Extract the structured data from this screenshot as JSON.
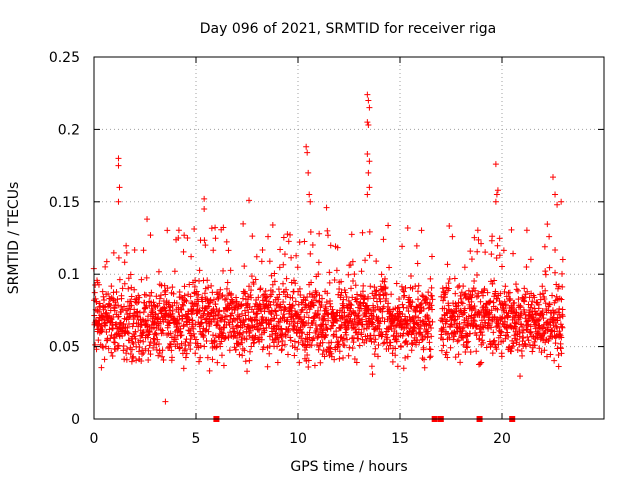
{
  "chart_data": {
    "type": "scatter",
    "title": "Day 096 of 2021, SRMTID for receiver riga",
    "xlabel": "GPS time / hours",
    "ylabel": "SRMTID / TECUs",
    "xlim": [
      0,
      25
    ],
    "ylim": [
      0,
      0.25
    ],
    "x_ticks": [
      0,
      5,
      10,
      15,
      20
    ],
    "x_tick_labels": [
      "0",
      "5",
      "10",
      "15",
      "20"
    ],
    "y_ticks": [
      0,
      0.05,
      0.1,
      0.15,
      0.2,
      0.25
    ],
    "y_tick_labels": [
      "0",
      "0.05",
      "0.1",
      "0.15",
      "0.2",
      "0.25"
    ],
    "grid": true,
    "marker": "plus",
    "color": "#ff0000",
    "series": [
      {
        "name": "SRMTID",
        "density_profile": {
          "description": "dense band of plus markers, mostly between 0.03 and 0.10 TECU, across 0–23 h; data gap ~16.6–17.0 h",
          "x_range": [
            0,
            23
          ],
          "typical_range": [
            0.02,
            0.12
          ],
          "gaps": [
            [
              16.6,
              17.0
            ]
          ]
        },
        "notable_points": [
          {
            "x": 1.2,
            "y": 0.18
          },
          {
            "x": 1.2,
            "y": 0.175
          },
          {
            "x": 1.25,
            "y": 0.16
          },
          {
            "x": 1.2,
            "y": 0.15
          },
          {
            "x": 2.6,
            "y": 0.138
          },
          {
            "x": 5.4,
            "y": 0.152
          },
          {
            "x": 5.4,
            "y": 0.145
          },
          {
            "x": 7.6,
            "y": 0.151
          },
          {
            "x": 10.4,
            "y": 0.188
          },
          {
            "x": 10.45,
            "y": 0.184
          },
          {
            "x": 10.5,
            "y": 0.17
          },
          {
            "x": 10.55,
            "y": 0.155
          },
          {
            "x": 10.6,
            "y": 0.15
          },
          {
            "x": 11.4,
            "y": 0.146
          },
          {
            "x": 13.4,
            "y": 0.224
          },
          {
            "x": 13.45,
            "y": 0.22
          },
          {
            "x": 13.5,
            "y": 0.215
          },
          {
            "x": 13.4,
            "y": 0.205
          },
          {
            "x": 13.45,
            "y": 0.203
          },
          {
            "x": 13.4,
            "y": 0.183
          },
          {
            "x": 13.5,
            "y": 0.178
          },
          {
            "x": 13.45,
            "y": 0.17
          },
          {
            "x": 13.5,
            "y": 0.16
          },
          {
            "x": 13.4,
            "y": 0.155
          },
          {
            "x": 19.7,
            "y": 0.176
          },
          {
            "x": 19.8,
            "y": 0.158
          },
          {
            "x": 19.75,
            "y": 0.155
          },
          {
            "x": 19.7,
            "y": 0.15
          },
          {
            "x": 22.5,
            "y": 0.167
          },
          {
            "x": 22.6,
            "y": 0.155
          },
          {
            "x": 22.7,
            "y": 0.148
          },
          {
            "x": 22.9,
            "y": 0.15
          },
          {
            "x": 3.5,
            "y": 0.012
          }
        ]
      },
      {
        "name": "zero markers",
        "marker": "square",
        "points": [
          {
            "x": 6.0,
            "y": 0
          },
          {
            "x": 16.7,
            "y": 0
          },
          {
            "x": 17.0,
            "y": 0
          },
          {
            "x": 18.9,
            "y": 0
          },
          {
            "x": 20.5,
            "y": 0
          }
        ]
      }
    ]
  }
}
